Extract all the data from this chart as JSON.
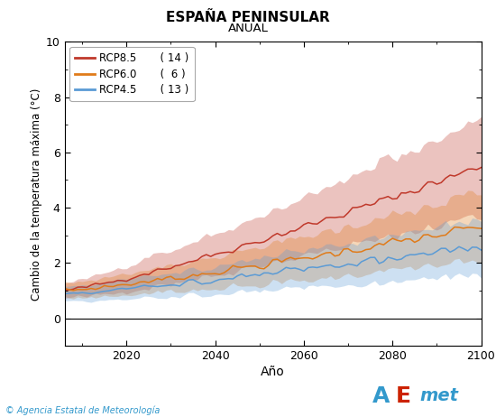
{
  "title": "ESPAÑA PENINSULAR",
  "subtitle": "ANUAL",
  "xlabel": "Año",
  "ylabel": "Cambio de la temperatura máxima (°C)",
  "xmin": 2006,
  "xmax": 2100,
  "ymin": -1,
  "ymax": 10,
  "yticks": [
    0,
    2,
    4,
    6,
    8,
    10
  ],
  "xticks": [
    2020,
    2040,
    2060,
    2080,
    2100
  ],
  "legend_entries": [
    {
      "label": "RCP8.5",
      "count": "( 14 )",
      "color": "#c0392b"
    },
    {
      "label": "RCP6.0",
      "count": "(  6 )",
      "color": "#e07b1a"
    },
    {
      "label": "RCP4.5",
      "count": "( 13 )",
      "color": "#5b9bd5"
    }
  ],
  "fill_alpha": 0.3,
  "line_alpha": 1.0,
  "background_color": "#ffffff",
  "panel_color": "#ffffff",
  "footer_text": "© Agencia Estatal de Meteorología",
  "footer_color": "#3399cc"
}
